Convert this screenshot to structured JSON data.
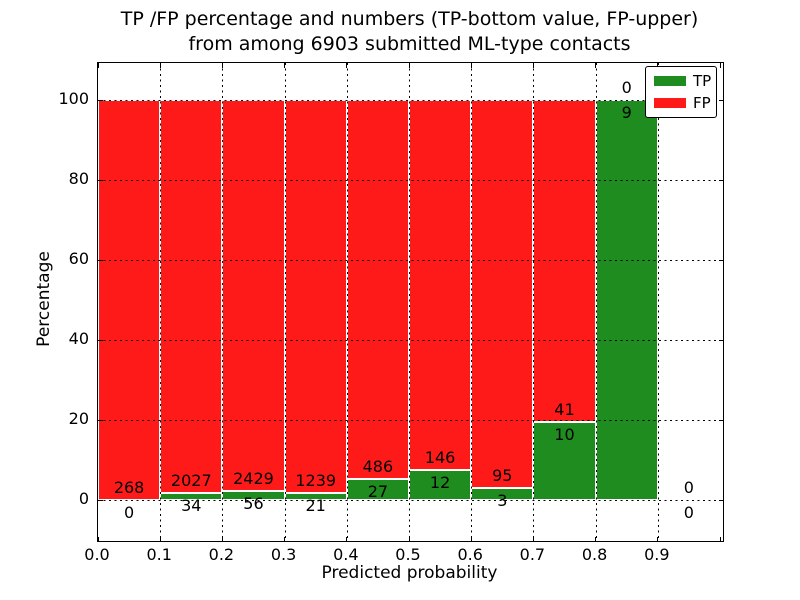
{
  "figure": {
    "title_line1": "TP /FP percentage and numbers (TP-bottom value, FP-upper)",
    "title_line2": "from among 6903 submitted ML-type contacts",
    "background": "#ffffff"
  },
  "chart_data": {
    "type": "bar",
    "stacked": true,
    "title": "TP /FP percentage and numbers (TP-bottom value, FP-upper)\nfrom among 6903 submitted ML-type contacts",
    "xlabel": "Predicted probability",
    "ylabel": "Percentage",
    "total_contacts": 6903,
    "xlim": [
      0.0,
      1.005
    ],
    "ylim": [
      -10,
      110
    ],
    "x_ticks": [
      "0.0",
      "0.1",
      "0.2",
      "0.3",
      "0.4",
      "0.5",
      "0.6",
      "0.7",
      "0.8",
      "0.9"
    ],
    "y_ticks": [
      0,
      20,
      40,
      60,
      80,
      100
    ],
    "grid": "dotted, both axes, drawn above bars",
    "colors": {
      "tp": "#1e8c1e",
      "fp": "#ff1a1a",
      "bar_edge": "#ffffff",
      "text": "#000000"
    },
    "legend": {
      "position": "upper right",
      "entries": [
        {
          "label": "TP",
          "color": "#1e8c1e"
        },
        {
          "label": "FP",
          "color": "#ff1a1a"
        }
      ]
    },
    "bins": [
      {
        "range": "0.0-0.1",
        "tp": 0,
        "fp": 268,
        "tp_pct": 0.0,
        "fp_pct": 100.0
      },
      {
        "range": "0.1-0.2",
        "tp": 34,
        "fp": 2027,
        "tp_pct": 1.65,
        "fp_pct": 98.35
      },
      {
        "range": "0.2-0.3",
        "tp": 56,
        "fp": 2429,
        "tp_pct": 2.25,
        "fp_pct": 97.75
      },
      {
        "range": "0.3-0.4",
        "tp": 21,
        "fp": 1239,
        "tp_pct": 1.67,
        "fp_pct": 98.33
      },
      {
        "range": "0.4-0.5",
        "tp": 27,
        "fp": 486,
        "tp_pct": 5.26,
        "fp_pct": 94.74
      },
      {
        "range": "0.5-0.6",
        "tp": 12,
        "fp": 146,
        "tp_pct": 7.59,
        "fp_pct": 92.41
      },
      {
        "range": "0.6-0.7",
        "tp": 3,
        "fp": 95,
        "tp_pct": 3.06,
        "fp_pct": 96.94
      },
      {
        "range": "0.7-0.8",
        "tp": 10,
        "fp": 41,
        "tp_pct": 19.61,
        "fp_pct": 80.39
      },
      {
        "range": "0.8-0.9",
        "tp": 9,
        "fp": 0,
        "tp_pct": 100.0,
        "fp_pct": 0.0
      },
      {
        "range": "0.9-1.0",
        "tp": 0,
        "fp": 0,
        "tp_pct": 0.0,
        "fp_pct": 0.0
      }
    ]
  }
}
